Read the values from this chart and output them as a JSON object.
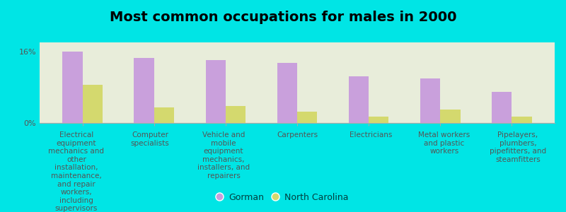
{
  "title": "Most common occupations for males in 2000",
  "background_color": "#00e5e5",
  "plot_bg_color": "#e8edda",
  "categories": [
    "Electrical\nequipment\nmechanics and\nother\ninstallation,\nmaintenance,\nand repair\nworkers,\nincluding\nsupervisors",
    "Computer\nspecialists",
    "Vehicle and\nmobile\nequipment\nmechanics,\ninstallers, and\nrepairers",
    "Carpenters",
    "Electricians",
    "Metal workers\nand plastic\nworkers",
    "Pipelayers,\nplumbers,\npipefitters, and\nsteamfitters"
  ],
  "gorman_values": [
    16.0,
    14.5,
    14.0,
    13.5,
    10.5,
    10.0,
    7.0
  ],
  "nc_values": [
    8.5,
    3.5,
    3.8,
    2.5,
    1.5,
    3.0,
    1.5
  ],
  "gorman_color": "#c9a0dc",
  "nc_color": "#d4d96e",
  "ylim": [
    0,
    18
  ],
  "yticks": [
    0,
    16
  ],
  "ytick_labels": [
    "0%",
    "16%"
  ],
  "bar_width": 0.28,
  "legend_gorman": "Gorman",
  "legend_nc": "North Carolina",
  "title_fontsize": 14,
  "tick_fontsize": 8,
  "label_fontsize": 7.5
}
